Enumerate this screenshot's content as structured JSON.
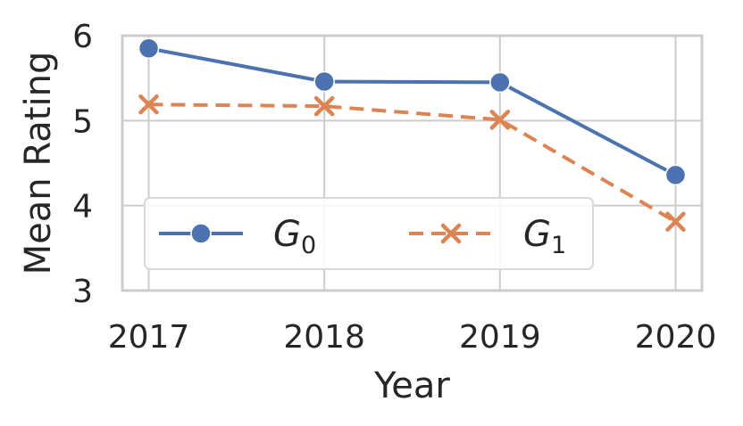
{
  "chart_data": {
    "type": "line",
    "x": [
      2017,
      2018,
      2019,
      2020
    ],
    "x_tick_labels": [
      "2017",
      "2018",
      "2019",
      "2020"
    ],
    "y_ticks": [
      3,
      4,
      5,
      6
    ],
    "y_tick_labels": [
      "3",
      "4",
      "5",
      "6"
    ],
    "ylim": [
      3,
      6
    ],
    "xlabel": "Year",
    "ylabel": "Mean Rating",
    "grid": true,
    "legend_position": "lower-left",
    "series": [
      {
        "name": "G",
        "subscript": "0",
        "values": [
          5.85,
          5.46,
          5.45,
          4.36
        ],
        "color": "#4c72b0",
        "marker": "circle",
        "linestyle": "solid"
      },
      {
        "name": "G",
        "subscript": "1",
        "values": [
          5.19,
          5.17,
          5.01,
          3.81
        ],
        "color": "#dd8452",
        "marker": "x",
        "linestyle": "dashed"
      }
    ]
  }
}
